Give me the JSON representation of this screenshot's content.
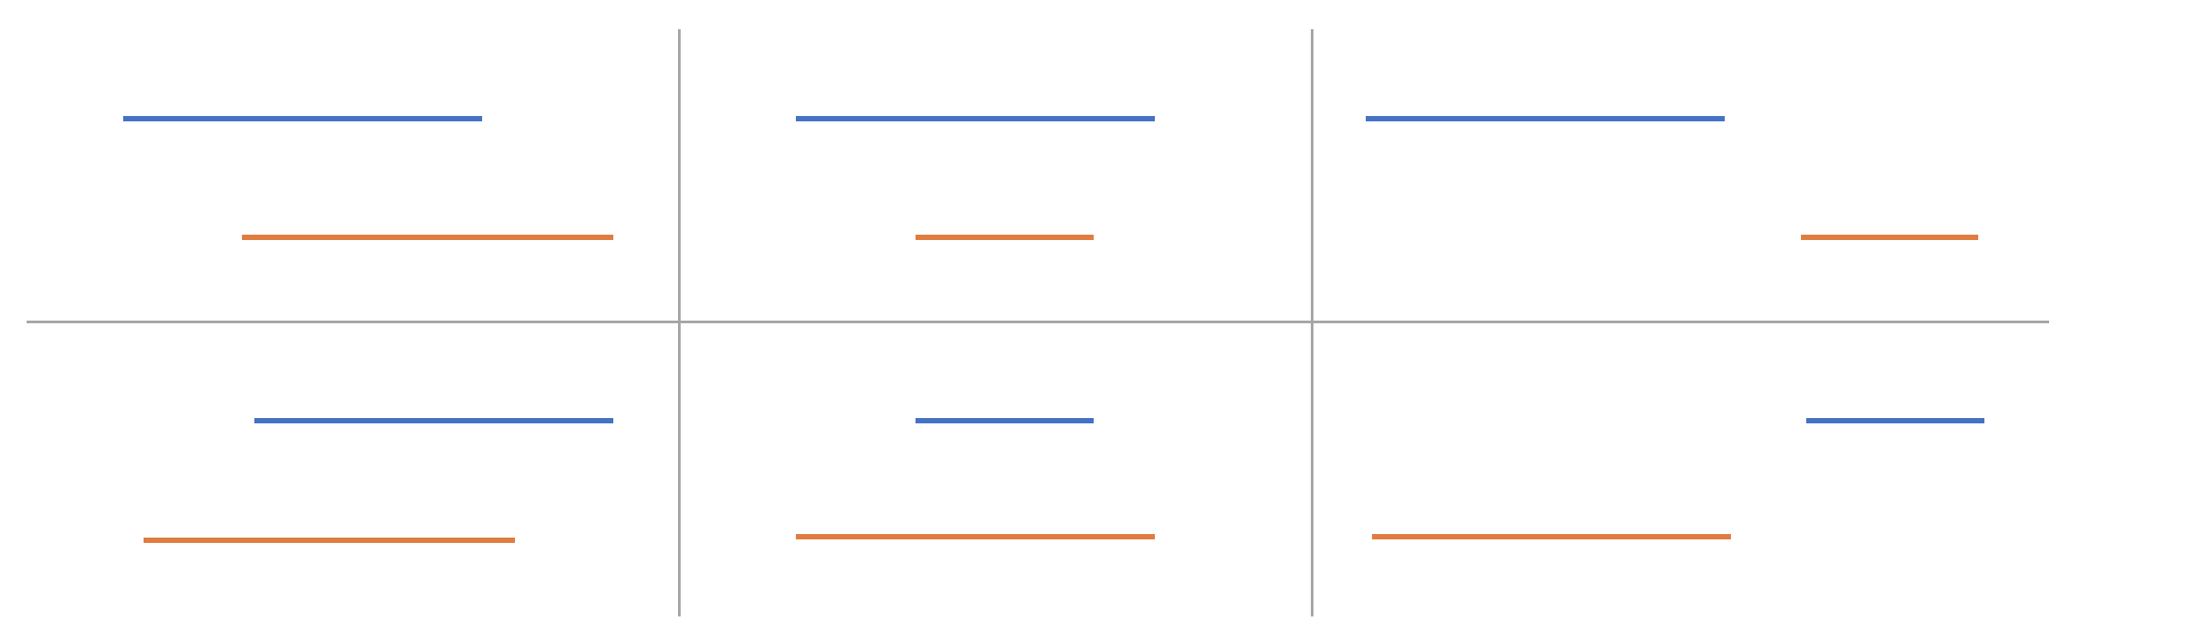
{
  "colors": {
    "blue": "#4472c4",
    "orange": "#e07c3f",
    "grid": "#a6a6a6",
    "background": "#ffffff"
  },
  "cells": [
    {
      "id": "top-left",
      "top": "blue",
      "bottom": "orange"
    },
    {
      "id": "top-middle",
      "top": "blue",
      "bottom": "orange"
    },
    {
      "id": "top-right",
      "top": "blue",
      "bottom": "orange"
    },
    {
      "id": "bottom-left",
      "top": "blue",
      "bottom": "orange"
    },
    {
      "id": "bottom-middle",
      "top": "blue",
      "bottom": "orange"
    },
    {
      "id": "bottom-right",
      "top": "blue",
      "bottom": "orange"
    }
  ]
}
